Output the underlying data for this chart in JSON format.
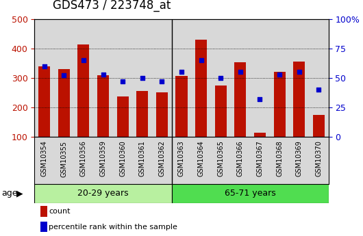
{
  "title": "GDS473 / 223748_at",
  "samples": [
    "GSM10354",
    "GSM10355",
    "GSM10356",
    "GSM10359",
    "GSM10360",
    "GSM10361",
    "GSM10362",
    "GSM10363",
    "GSM10364",
    "GSM10365",
    "GSM10366",
    "GSM10367",
    "GSM10368",
    "GSM10369",
    "GSM10370"
  ],
  "counts": [
    340,
    330,
    413,
    310,
    238,
    255,
    250,
    307,
    430,
    275,
    352,
    113,
    320,
    355,
    175
  ],
  "percentiles": [
    60,
    52,
    65,
    53,
    47,
    50,
    47,
    55,
    65,
    50,
    55,
    32,
    53,
    55,
    40
  ],
  "bar_color": "#bb1100",
  "dot_color": "#0000cc",
  "ylim_left": [
    100,
    500
  ],
  "ylim_right": [
    0,
    100
  ],
  "yticks_left": [
    100,
    200,
    300,
    400,
    500
  ],
  "yticks_right": [
    0,
    25,
    50,
    75,
    100
  ],
  "ytick_labels_right": [
    "0",
    "25",
    "50",
    "75",
    "100%"
  ],
  "group1_label": "20-29 years",
  "group2_label": "65-71 years",
  "group1_count": 7,
  "group2_count": 8,
  "age_label": "age",
  "legend_count": "count",
  "legend_pct": "percentile rank within the sample",
  "plot_bg_color": "#d8d8d8",
  "group1_color": "#b8f0a0",
  "group2_color": "#50dd50",
  "fig_bg_color": "#ffffff",
  "title_fontsize": 12,
  "axis_fontsize": 9,
  "tick_label_fontsize": 7
}
